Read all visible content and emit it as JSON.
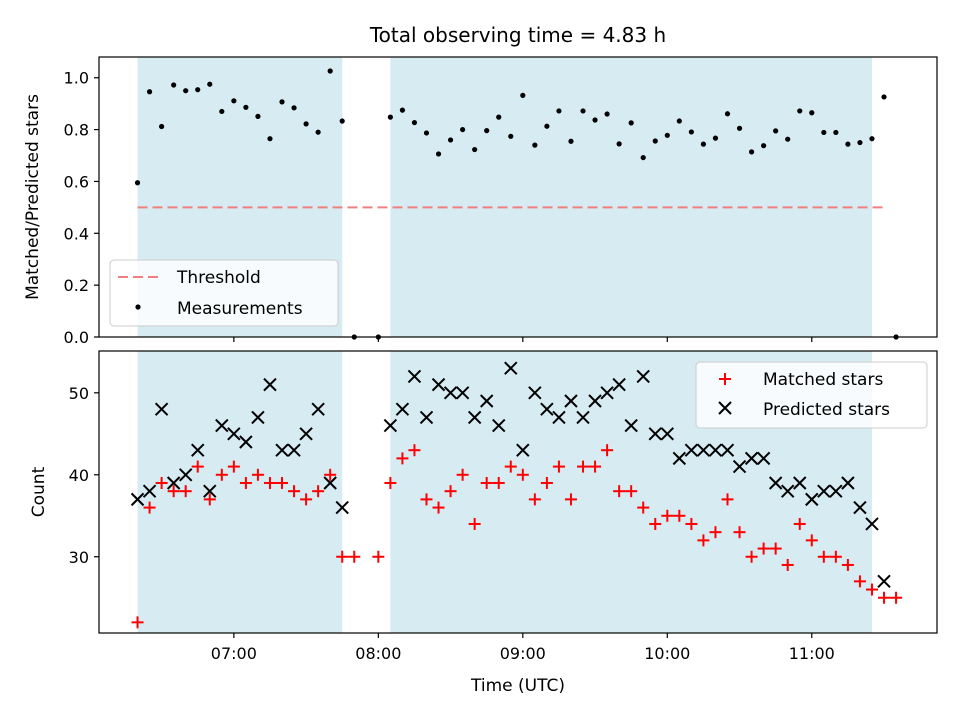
{
  "chart_data": [
    {
      "type": "scatter",
      "title": "Total observing time = 4.83 h",
      "ylabel": "Matched/Predicted stars",
      "xlabel": "",
      "xlim": [
        "06:04",
        "11:52"
      ],
      "ylim": [
        0,
        1.08
      ],
      "y_ticks": [
        0.0,
        0.2,
        0.4,
        0.6,
        0.8,
        1.0
      ],
      "y_tick_labels": [
        "0.0",
        "0.2",
        "0.4",
        "0.6",
        "0.8",
        "1.0"
      ],
      "x_ticks": [
        "07:00",
        "08:00",
        "09:00",
        "10:00",
        "11:00"
      ],
      "shaded_intervals": [
        [
          "06:20",
          "07:45"
        ],
        [
          "08:05",
          "11:25"
        ]
      ],
      "legend_position": "lower-left",
      "threshold": {
        "name": "Threshold",
        "value": 0.5,
        "x_start": "06:20",
        "x_end": "11:30",
        "color": "#f08080",
        "style": "dashed"
      },
      "series": [
        {
          "name": "Measurements",
          "color": "#000000",
          "marker": "dot",
          "points": [
            [
              "06:20",
              0.595
            ],
            [
              "06:25",
              0.946
            ],
            [
              "06:30",
              0.812
            ],
            [
              "06:35",
              0.972
            ],
            [
              "06:40",
              0.95
            ],
            [
              "06:45",
              0.954
            ],
            [
              "06:50",
              0.975
            ],
            [
              "06:55",
              0.87
            ],
            [
              "07:00",
              0.911
            ],
            [
              "07:05",
              0.886
            ],
            [
              "07:10",
              0.851
            ],
            [
              "07:15",
              0.765
            ],
            [
              "07:20",
              0.907
            ],
            [
              "07:25",
              0.884
            ],
            [
              "07:30",
              0.822
            ],
            [
              "07:35",
              0.79
            ],
            [
              "07:40",
              1.026
            ],
            [
              "07:45",
              0.833
            ],
            [
              "07:50",
              0.0
            ],
            [
              "08:00",
              0.0
            ],
            [
              "08:05",
              0.848
            ],
            [
              "08:10",
              0.875
            ],
            [
              "08:15",
              0.827
            ],
            [
              "08:20",
              0.787
            ],
            [
              "08:25",
              0.706
            ],
            [
              "08:30",
              0.76
            ],
            [
              "08:35",
              0.8
            ],
            [
              "08:40",
              0.723
            ],
            [
              "08:45",
              0.796
            ],
            [
              "08:50",
              0.848
            ],
            [
              "08:55",
              0.774
            ],
            [
              "09:00",
              0.932
            ],
            [
              "09:05",
              0.74
            ],
            [
              "09:10",
              0.813
            ],
            [
              "09:15",
              0.872
            ],
            [
              "09:20",
              0.755
            ],
            [
              "09:25",
              0.872
            ],
            [
              "09:30",
              0.837
            ],
            [
              "09:35",
              0.86
            ],
            [
              "09:40",
              0.745
            ],
            [
              "09:45",
              0.826
            ],
            [
              "09:50",
              0.692
            ],
            [
              "09:55",
              0.756
            ],
            [
              "10:00",
              0.778
            ],
            [
              "10:05",
              0.833
            ],
            [
              "10:10",
              0.791
            ],
            [
              "10:15",
              0.744
            ],
            [
              "10:20",
              0.767
            ],
            [
              "10:25",
              0.861
            ],
            [
              "10:30",
              0.805
            ],
            [
              "10:35",
              0.714
            ],
            [
              "10:40",
              0.738
            ],
            [
              "10:45",
              0.795
            ],
            [
              "10:50",
              0.763
            ],
            [
              "10:55",
              0.872
            ],
            [
              "11:00",
              0.865
            ],
            [
              "11:05",
              0.789
            ],
            [
              "11:10",
              0.789
            ],
            [
              "11:15",
              0.744
            ],
            [
              "11:20",
              0.75
            ],
            [
              "11:25",
              0.765
            ],
            [
              "11:30",
              0.926
            ],
            [
              "11:35",
              0.0
            ]
          ]
        }
      ]
    },
    {
      "type": "scatter",
      "title": "",
      "xlabel": "Time (UTC)",
      "ylabel": "Count",
      "xlim": [
        "06:04",
        "11:52"
      ],
      "ylim": [
        20.7,
        55.1
      ],
      "y_ticks": [
        30,
        40,
        50
      ],
      "y_tick_labels": [
        "30",
        "40",
        "50"
      ],
      "x_ticks": [
        "07:00",
        "08:00",
        "09:00",
        "10:00",
        "11:00"
      ],
      "x_tick_labels": [
        "07:00",
        "08:00",
        "09:00",
        "10:00",
        "11:00"
      ],
      "shaded_intervals": [
        [
          "06:20",
          "07:45"
        ],
        [
          "08:05",
          "11:25"
        ]
      ],
      "legend_position": "upper-right",
      "series": [
        {
          "name": "Matched stars",
          "color": "#ff0000",
          "marker": "plus",
          "points": [
            [
              "06:20",
              22
            ],
            [
              "06:25",
              36
            ],
            [
              "06:30",
              39
            ],
            [
              "06:35",
              38
            ],
            [
              "06:40",
              38
            ],
            [
              "06:45",
              41
            ],
            [
              "06:50",
              37
            ],
            [
              "06:55",
              40
            ],
            [
              "07:00",
              41
            ],
            [
              "07:05",
              39
            ],
            [
              "07:10",
              40
            ],
            [
              "07:15",
              39
            ],
            [
              "07:20",
              39
            ],
            [
              "07:25",
              38
            ],
            [
              "07:30",
              37
            ],
            [
              "07:35",
              38
            ],
            [
              "07:40",
              40
            ],
            [
              "07:45",
              30
            ],
            [
              "07:50",
              30
            ],
            [
              "08:00",
              30
            ],
            [
              "08:05",
              39
            ],
            [
              "08:10",
              42
            ],
            [
              "08:15",
              43
            ],
            [
              "08:20",
              37
            ],
            [
              "08:25",
              36
            ],
            [
              "08:30",
              38
            ],
            [
              "08:35",
              40
            ],
            [
              "08:40",
              34
            ],
            [
              "08:45",
              39
            ],
            [
              "08:50",
              39
            ],
            [
              "08:55",
              41
            ],
            [
              "09:00",
              40
            ],
            [
              "09:05",
              37
            ],
            [
              "09:10",
              39
            ],
            [
              "09:15",
              41
            ],
            [
              "09:20",
              37
            ],
            [
              "09:25",
              41
            ],
            [
              "09:30",
              41
            ],
            [
              "09:35",
              43
            ],
            [
              "09:40",
              38
            ],
            [
              "09:45",
              38
            ],
            [
              "09:50",
              36
            ],
            [
              "09:55",
              34
            ],
            [
              "10:00",
              35
            ],
            [
              "10:05",
              35
            ],
            [
              "10:10",
              34
            ],
            [
              "10:15",
              32
            ],
            [
              "10:20",
              33
            ],
            [
              "10:25",
              37
            ],
            [
              "10:30",
              33
            ],
            [
              "10:35",
              30
            ],
            [
              "10:40",
              31
            ],
            [
              "10:45",
              31
            ],
            [
              "10:50",
              29
            ],
            [
              "10:55",
              34
            ],
            [
              "11:00",
              32
            ],
            [
              "11:05",
              30
            ],
            [
              "11:10",
              30
            ],
            [
              "11:15",
              29
            ],
            [
              "11:20",
              27
            ],
            [
              "11:25",
              26
            ],
            [
              "11:30",
              25
            ],
            [
              "11:35",
              25
            ]
          ]
        },
        {
          "name": "Predicted stars",
          "color": "#000000",
          "marker": "x",
          "points": [
            [
              "06:20",
              37
            ],
            [
              "06:25",
              38
            ],
            [
              "06:30",
              48
            ],
            [
              "06:35",
              39
            ],
            [
              "06:40",
              40
            ],
            [
              "06:45",
              43
            ],
            [
              "06:50",
              38
            ],
            [
              "06:55",
              46
            ],
            [
              "07:00",
              45
            ],
            [
              "07:05",
              44
            ],
            [
              "07:10",
              47
            ],
            [
              "07:15",
              51
            ],
            [
              "07:20",
              43
            ],
            [
              "07:25",
              43
            ],
            [
              "07:30",
              45
            ],
            [
              "07:35",
              48
            ],
            [
              "07:40",
              39
            ],
            [
              "07:45",
              36
            ],
            [
              "08:05",
              46
            ],
            [
              "08:10",
              48
            ],
            [
              "08:15",
              52
            ],
            [
              "08:20",
              47
            ],
            [
              "08:25",
              51
            ],
            [
              "08:30",
              50
            ],
            [
              "08:35",
              50
            ],
            [
              "08:40",
              47
            ],
            [
              "08:45",
              49
            ],
            [
              "08:50",
              46
            ],
            [
              "08:55",
              53
            ],
            [
              "09:00",
              43
            ],
            [
              "09:05",
              50
            ],
            [
              "09:10",
              48
            ],
            [
              "09:15",
              47
            ],
            [
              "09:20",
              49
            ],
            [
              "09:25",
              47
            ],
            [
              "09:30",
              49
            ],
            [
              "09:35",
              50
            ],
            [
              "09:40",
              51
            ],
            [
              "09:45",
              46
            ],
            [
              "09:50",
              52
            ],
            [
              "09:55",
              45
            ],
            [
              "10:00",
              45
            ],
            [
              "10:05",
              42
            ],
            [
              "10:10",
              43
            ],
            [
              "10:15",
              43
            ],
            [
              "10:20",
              43
            ],
            [
              "10:25",
              43
            ],
            [
              "10:30",
              41
            ],
            [
              "10:35",
              42
            ],
            [
              "10:40",
              42
            ],
            [
              "10:45",
              39
            ],
            [
              "10:50",
              38
            ],
            [
              "10:55",
              39
            ],
            [
              "11:00",
              37
            ],
            [
              "11:05",
              38
            ],
            [
              "11:10",
              38
            ],
            [
              "11:15",
              39
            ],
            [
              "11:20",
              36
            ],
            [
              "11:25",
              34
            ],
            [
              "11:30",
              27
            ]
          ]
        }
      ]
    }
  ],
  "colors": {
    "shade": "#add8e6",
    "shade_opacity": 0.5,
    "threshold": "#f08080"
  }
}
